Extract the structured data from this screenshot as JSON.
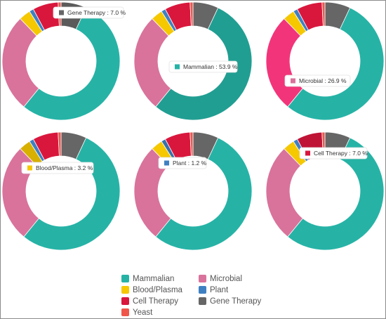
{
  "chart_data": {
    "type": "donut",
    "categories": [
      "Gene Therapy",
      "Mammalian",
      "Microbial",
      "Blood/Plasma",
      "Plant",
      "Cell Therapy",
      "Yeast"
    ],
    "colors": {
      "Mammalian": "#26b3a6",
      "Microbial": "#d9739b",
      "Blood/Plasma": "#f5c800",
      "Plant": "#3f80c2",
      "Cell Therapy": "#d9173d",
      "Gene Therapy": "#666666",
      "Yeast": "#f0554a"
    },
    "values": [
      7.0,
      53.9,
      26.9,
      3.2,
      1.2,
      7.0,
      0.8
    ],
    "charts": [
      {
        "hovered": "Gene Therapy",
        "tooltip": "Gene Therapy : 7.0 %"
      },
      {
        "hovered": "Mammalian",
        "tooltip": "Mammalian : 53.9 %"
      },
      {
        "hovered": "Microbial",
        "tooltip": "Microbial : 26.9 %"
      },
      {
        "hovered": "Blood/Plasma",
        "tooltip": "Blood/Plasma : 3.2 %"
      },
      {
        "hovered": "Plant",
        "tooltip": "Plant : 1.2 %"
      },
      {
        "hovered": "Cell Therapy",
        "tooltip": "Cell Therapy : 7.0 %"
      }
    ],
    "legend": {
      "items": [
        "Mammalian",
        "Microbial",
        "Blood/Plasma",
        "Plant",
        "Cell Therapy",
        "Gene Therapy",
        "Yeast"
      ],
      "placement": "bottom-center"
    }
  }
}
